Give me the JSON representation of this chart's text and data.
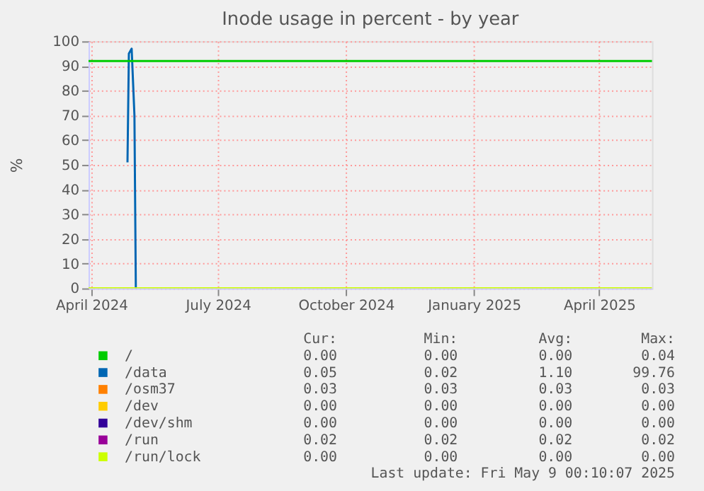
{
  "chart_data": {
    "type": "line",
    "title": "Inode usage in percent - by year",
    "ylabel": "%",
    "xlim": [
      "2024-03-30",
      "2025-05-09"
    ],
    "ylim": [
      0,
      100
    ],
    "yticks": [
      0,
      10,
      20,
      30,
      40,
      50,
      60,
      70,
      80,
      90,
      100
    ],
    "xticks": [
      {
        "value": "2024-04-01",
        "label": "April 2024"
      },
      {
        "value": "2024-07-01",
        "label": "July 2024"
      },
      {
        "value": "2024-10-01",
        "label": "October 2024"
      },
      {
        "value": "2025-01-01",
        "label": "January 2025"
      },
      {
        "value": "2025-04-01",
        "label": "April 2025"
      }
    ],
    "grid": true,
    "legend": "bottom",
    "series": [
      {
        "name": "/",
        "color": "#00cc00"
      },
      {
        "name": "/data",
        "color": "#0066b3",
        "x": [
          "2024-04-27",
          "2024-04-28",
          "2024-04-29",
          "2024-04-30",
          "2024-05-02",
          "2024-05-03"
        ],
        "values": [
          51,
          95,
          96,
          97,
          70,
          0
        ]
      },
      {
        "name": "/osm37",
        "color": "#ff8000"
      },
      {
        "name": "/dev",
        "color": "#ffcc00"
      },
      {
        "name": "/dev/shm",
        "color": "#330099"
      },
      {
        "name": "/run",
        "color": "#990099"
      },
      {
        "name": "/run/lock",
        "color": "#ccff00",
        "x": [
          "2024-03-30",
          "2025-05-09"
        ],
        "values": [
          0,
          0
        ]
      }
    ],
    "ref_lines": [
      {
        "axis": "y",
        "value": 92,
        "color": "#00cc00"
      }
    ],
    "annotations": [
      "Cur:",
      "Min:",
      "Avg:",
      "Max:",
      "0.00",
      "0.00",
      "0.00",
      "0.04",
      "0.05",
      "0.02",
      "1.10",
      "99.76",
      "0.03",
      "0.03",
      "0.03",
      "0.03",
      "0.00",
      "0.00",
      "0.00",
      "0.00",
      "0.00",
      "0.00",
      "0.00",
      "0.00",
      "0.02",
      "0.02",
      "0.02",
      "0.02",
      "0.00",
      "0.00",
      "0.00",
      "0.00",
      "Last update: Fri May  9 00:10:07 2025"
    ]
  }
}
